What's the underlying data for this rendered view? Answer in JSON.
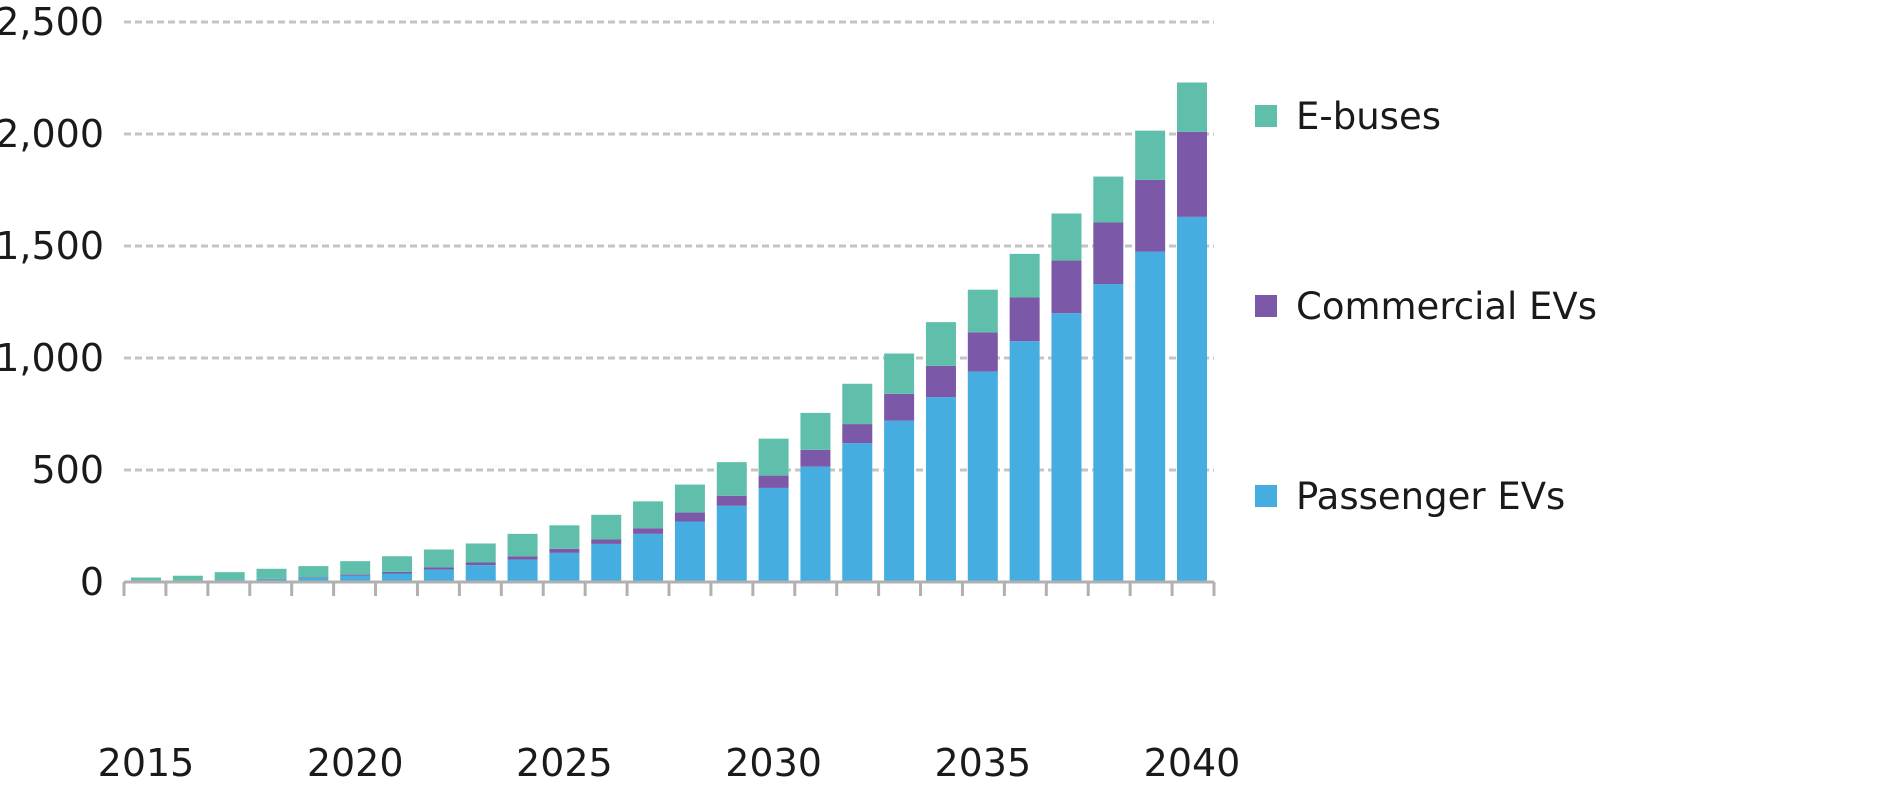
{
  "chart_data": {
    "type": "bar",
    "stacked": true,
    "x": [
      2015,
      2016,
      2017,
      2018,
      2019,
      2020,
      2021,
      2022,
      2023,
      2024,
      2025,
      2026,
      2027,
      2028,
      2029,
      2030,
      2031,
      2032,
      2033,
      2034,
      2035,
      2036,
      2037,
      2038,
      2039,
      2040
    ],
    "x_tick_labels": [
      "2015",
      "2020",
      "2025",
      "2030",
      "2035",
      "2040"
    ],
    "x_tick_values": [
      2015,
      2020,
      2025,
      2030,
      2035,
      2040
    ],
    "y_tick_labels": [
      "0",
      "500",
      "1,000",
      "1,500",
      "2,000",
      "2,500"
    ],
    "y_tick_values": [
      0,
      500,
      1000,
      1500,
      2000,
      2500
    ],
    "ylim": [
      0,
      2500
    ],
    "grid": true,
    "legend_position": "right",
    "series": [
      {
        "name": "Passenger EVs",
        "color": "#45ade0",
        "values": [
          2,
          5,
          8,
          12,
          18,
          28,
          38,
          55,
          75,
          100,
          130,
          170,
          215,
          270,
          340,
          420,
          515,
          620,
          720,
          825,
          940,
          1075,
          1200,
          1330,
          1475,
          1630
        ]
      },
      {
        "name": "Commercial EVs",
        "color": "#7b59a8",
        "values": [
          0,
          1,
          1,
          2,
          3,
          5,
          7,
          10,
          12,
          15,
          18,
          20,
          25,
          40,
          45,
          55,
          75,
          85,
          120,
          140,
          175,
          195,
          235,
          275,
          320,
          380
        ]
      },
      {
        "name": "E-buses",
        "color": "#5fbfaa",
        "values": [
          18,
          22,
          35,
          45,
          50,
          60,
          70,
          80,
          85,
          100,
          105,
          110,
          120,
          125,
          150,
          165,
          165,
          180,
          180,
          195,
          190,
          195,
          210,
          205,
          220,
          220
        ]
      }
    ],
    "legend_order": [
      "E-buses",
      "Commercial EVs",
      "Passenger EVs"
    ]
  }
}
